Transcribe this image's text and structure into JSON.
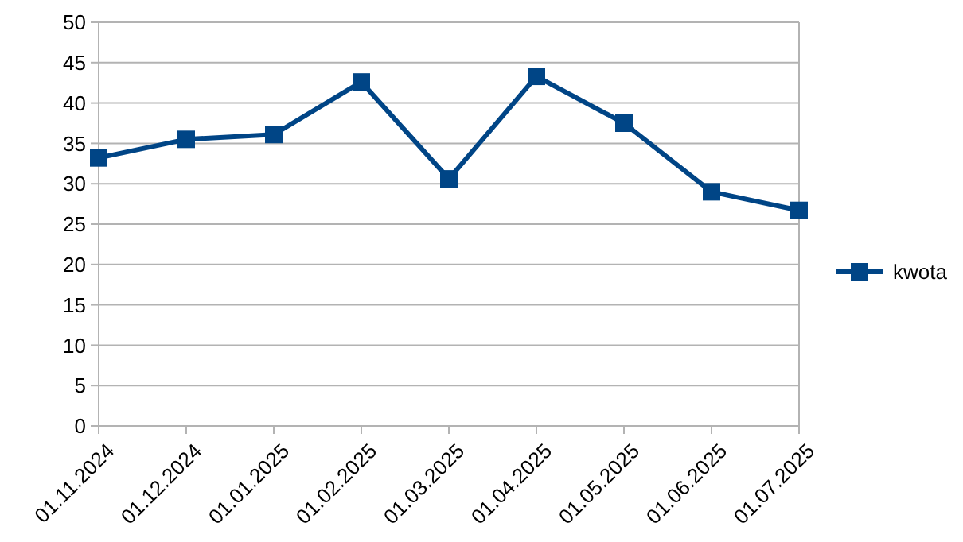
{
  "chart_data": {
    "type": "line",
    "categories": [
      "01.11.2024",
      "01.12.2024",
      "01.01.2025",
      "01.02.2025",
      "01.03.2025",
      "01.04.2025",
      "01.05.2025",
      "01.06.2025",
      "01.07.2025"
    ],
    "series": [
      {
        "name": "kwota",
        "color": "#004586",
        "values": [
          33.2,
          35.5,
          36.1,
          42.6,
          30.6,
          43.3,
          37.5,
          29.0,
          26.7
        ]
      }
    ],
    "ylim": [
      0,
      50
    ],
    "yticks": [
      0,
      5,
      10,
      15,
      20,
      25,
      30,
      35,
      40,
      45,
      50
    ],
    "grid": "y",
    "legend": "right",
    "marker": "square",
    "line_style": "solid"
  }
}
